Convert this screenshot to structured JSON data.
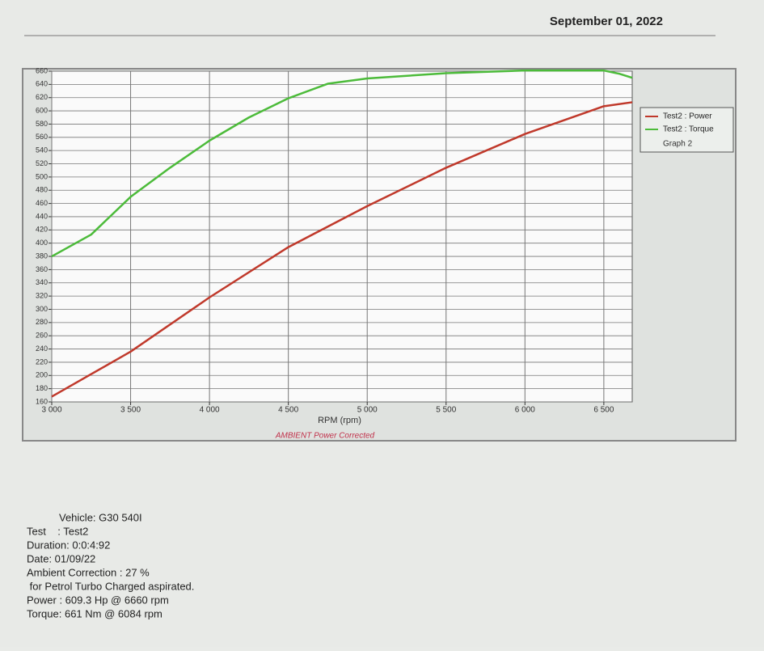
{
  "header": {
    "date": "September 01, 2022"
  },
  "chart_data": {
    "type": "line",
    "x_label": "RPM (rpm)",
    "subtitle": "AMBIENT Power Corrected",
    "legend_extra": "Graph 2",
    "legend": "right",
    "grid": true,
    "xlim": [
      3000,
      6680
    ],
    "xticks": [
      {
        "value": 3000,
        "label": "3 000"
      },
      {
        "value": 3500,
        "label": "3 500"
      },
      {
        "value": 4000,
        "label": "4 000"
      },
      {
        "value": 4500,
        "label": "4 500"
      },
      {
        "value": 5000,
        "label": "5 000"
      },
      {
        "value": 5500,
        "label": "5 500"
      },
      {
        "value": 6000,
        "label": "6 000"
      },
      {
        "value": 6500,
        "label": "6 500"
      }
    ],
    "ylim": [
      160,
      660
    ],
    "yticks": [
      160,
      180,
      200,
      220,
      240,
      260,
      280,
      300,
      320,
      340,
      360,
      380,
      400,
      420,
      440,
      460,
      480,
      500,
      520,
      540,
      560,
      580,
      600,
      620,
      640,
      660
    ],
    "series": [
      {
        "name": "Test2 : Power",
        "color": "#c0392b",
        "x": [
          3000,
          3500,
          4000,
          4500,
          5000,
          5500,
          6000,
          6500,
          6680
        ],
        "values": [
          168,
          236,
          318,
          394,
          456,
          514,
          565,
          607,
          613
        ]
      },
      {
        "name": "Test2 : Torque",
        "color": "#4cbb3a",
        "x": [
          3000,
          3250,
          3500,
          3750,
          4000,
          4250,
          4500,
          4750,
          5000,
          5500,
          6000,
          6500,
          6600,
          6680
        ],
        "values": [
          380,
          413,
          470,
          514,
          555,
          590,
          619,
          641,
          649,
          657,
          661,
          661,
          656,
          650
        ]
      }
    ]
  },
  "info": {
    "lines": [
      "Vehicle: G30 540I",
      "Test    : Test2",
      "Duration: 0:0:4:92",
      "Date: 01/09/22",
      "Ambient Correction : 27 %",
      " for Petrol Turbo Charged aspirated.",
      "Power : 609.3 Hp @ 6660 rpm",
      "Torque: 661 Nm @ 6084 rpm"
    ]
  }
}
